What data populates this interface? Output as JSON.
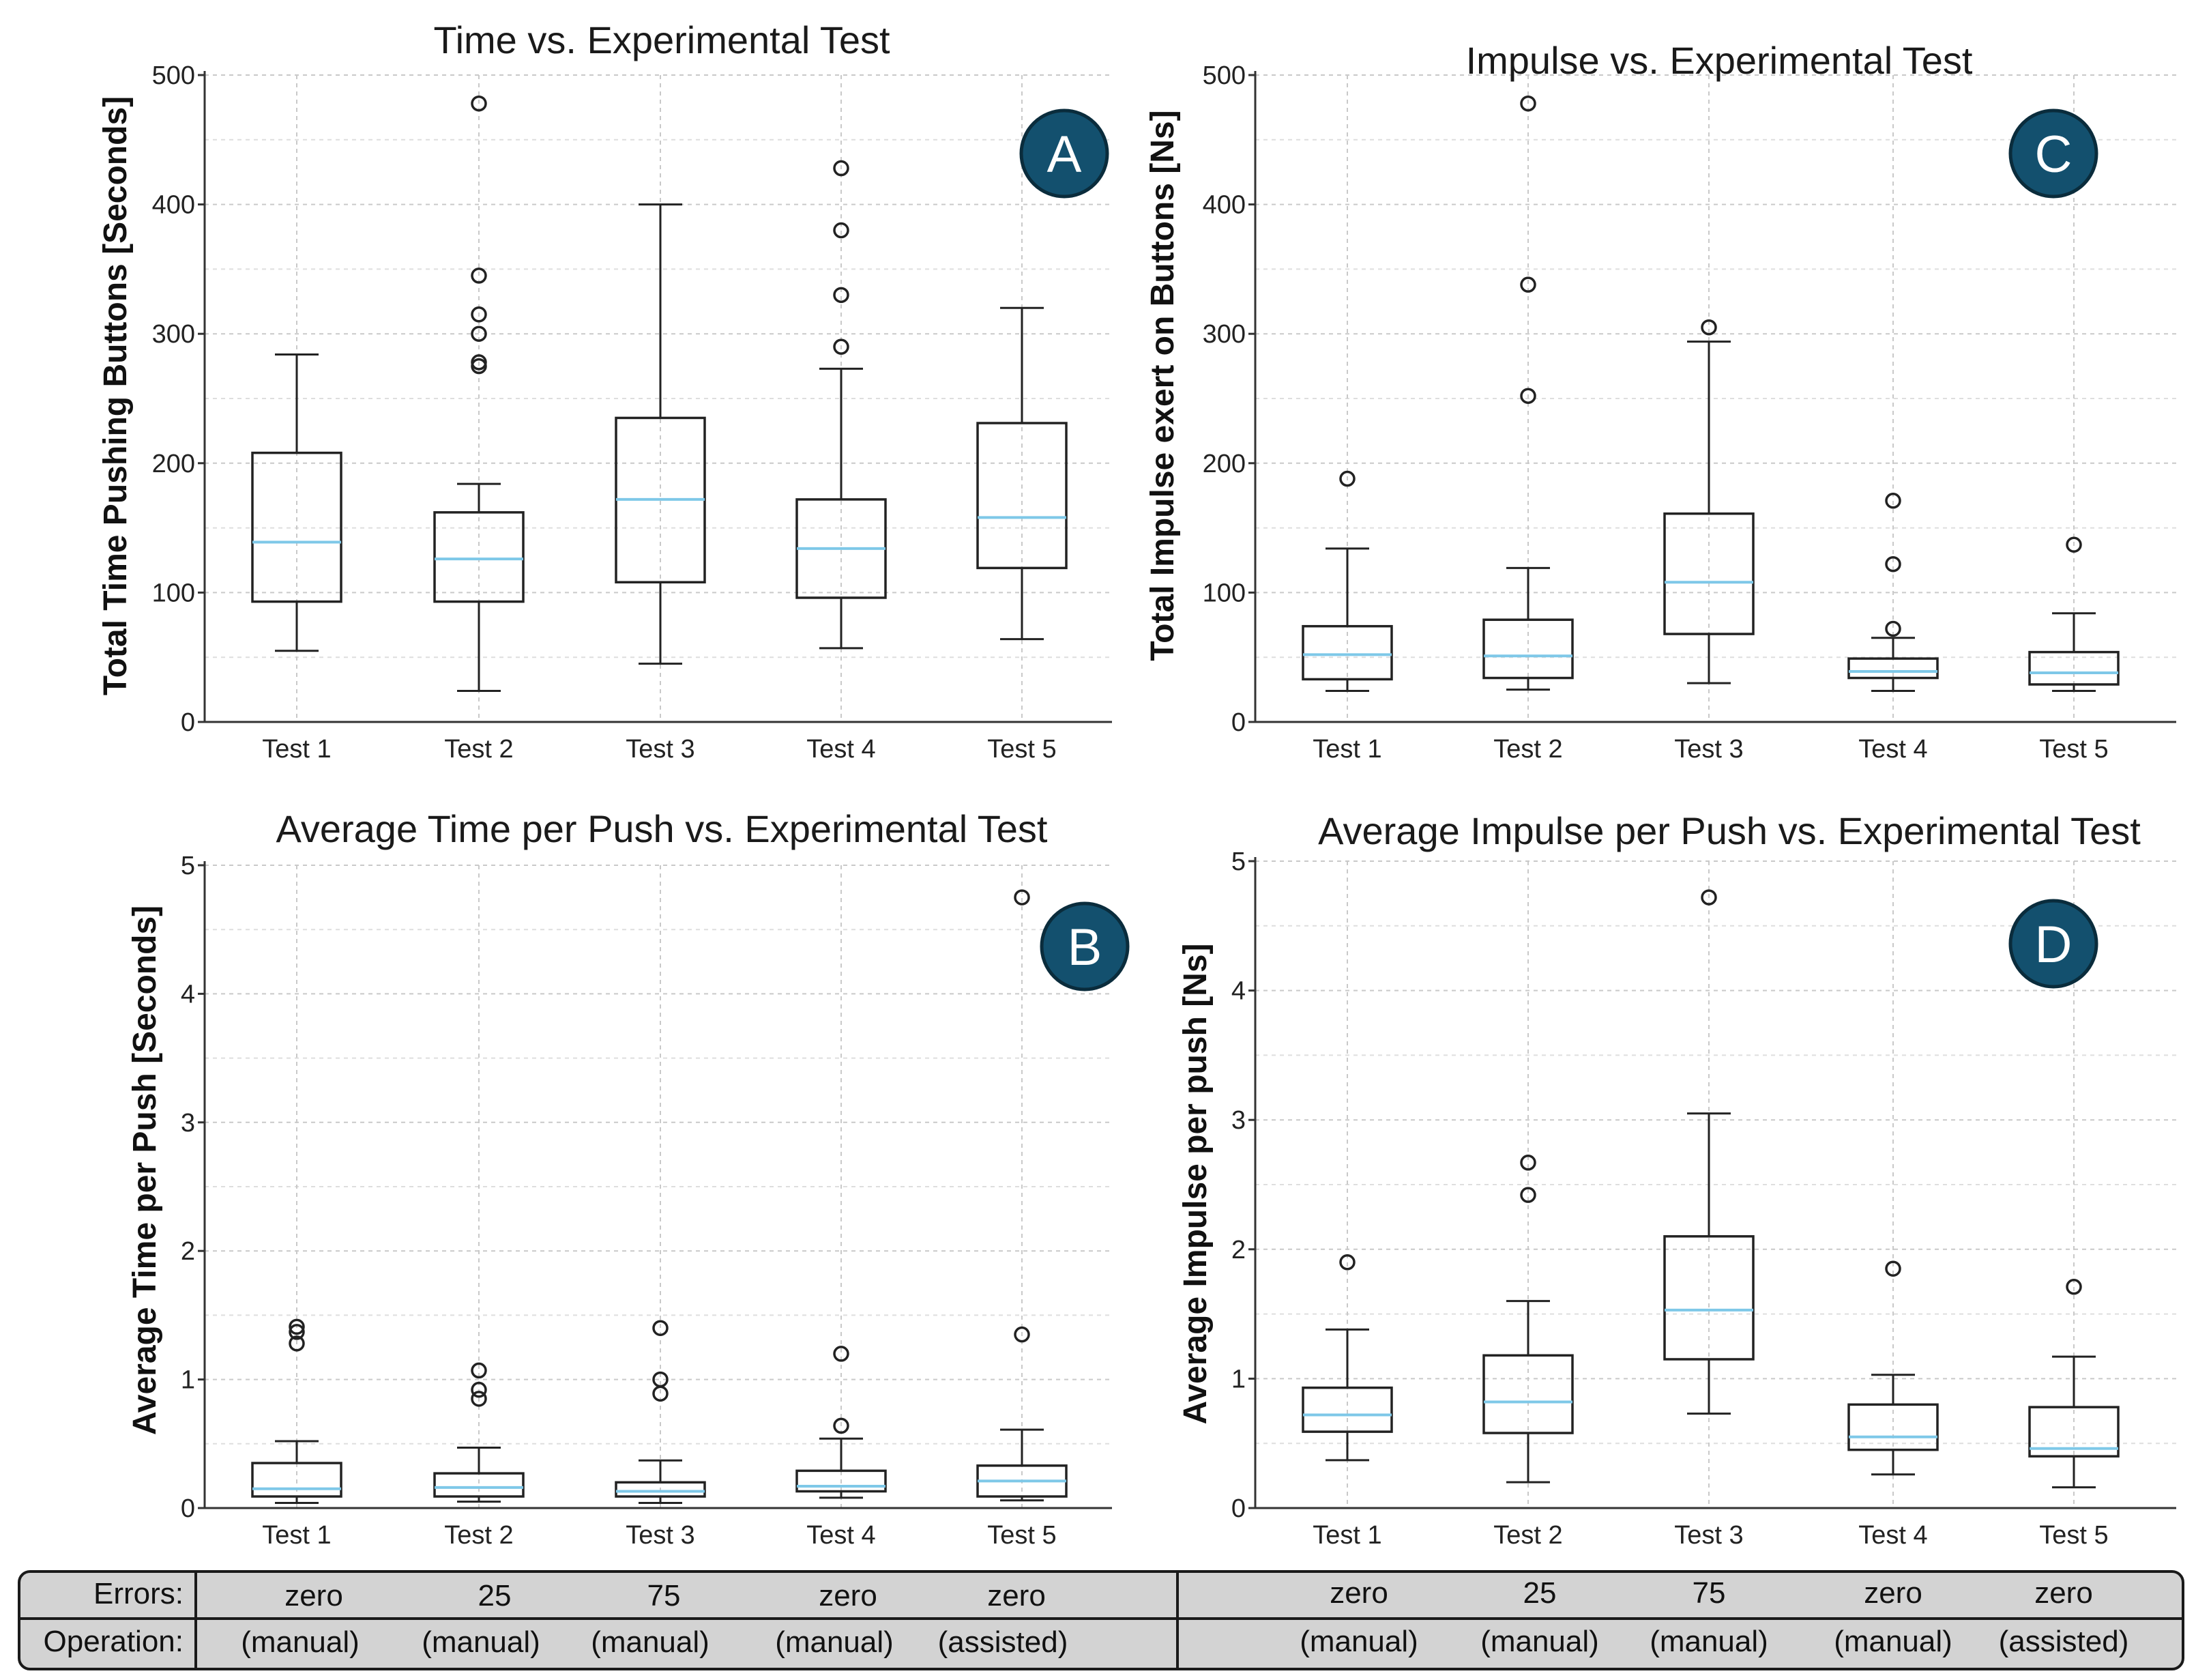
{
  "chart_data": [
    {
      "id": "A",
      "type": "box",
      "title": "Time vs. Experimental Test",
      "xlabel": "",
      "ylabel": "Total Time Pushing Buttons  [Seconds]",
      "ylim": [
        0,
        500
      ],
      "yticks": [
        0,
        100,
        200,
        300,
        400,
        500
      ],
      "categories": [
        "Test 1",
        "Test 2",
        "Test 3",
        "Test 4",
        "Test 5"
      ],
      "badge": "A",
      "boxes": [
        {
          "min": 55,
          "q1": 93,
          "median": 139,
          "q3": 208,
          "max": 284,
          "outliers": []
        },
        {
          "min": 24,
          "q1": 93,
          "median": 126,
          "q3": 162,
          "max": 184,
          "outliers": [
            275,
            278,
            300,
            315,
            345,
            478
          ]
        },
        {
          "min": 45,
          "q1": 108,
          "median": 172,
          "q3": 235,
          "max": 400,
          "outliers": []
        },
        {
          "min": 57,
          "q1": 96,
          "median": 134,
          "q3": 172,
          "max": 273,
          "outliers": [
            290,
            330,
            380,
            428
          ]
        },
        {
          "min": 64,
          "q1": 119,
          "median": 158,
          "q3": 231,
          "max": 320,
          "outliers": []
        }
      ]
    },
    {
      "id": "C",
      "type": "box",
      "title": "Impulse vs. Experimental Test",
      "xlabel": "",
      "ylabel": "Total Impulse exert on Buttons  [Ns]",
      "ylim": [
        0,
        500
      ],
      "yticks": [
        0,
        100,
        200,
        300,
        400,
        500
      ],
      "categories": [
        "Test 1",
        "Test 2",
        "Test 3",
        "Test 4",
        "Test 5"
      ],
      "badge": "C",
      "boxes": [
        {
          "min": 24,
          "q1": 33,
          "median": 52,
          "q3": 74,
          "max": 134,
          "outliers": [
            188
          ]
        },
        {
          "min": 25,
          "q1": 34,
          "median": 51,
          "q3": 79,
          "max": 119,
          "outliers": [
            252,
            338,
            478
          ]
        },
        {
          "min": 30,
          "q1": 68,
          "median": 108,
          "q3": 161,
          "max": 294,
          "outliers": [
            305
          ]
        },
        {
          "min": 24,
          "q1": 34,
          "median": 39,
          "q3": 49,
          "max": 65,
          "outliers": [
            72,
            122,
            171
          ]
        },
        {
          "min": 24,
          "q1": 29,
          "median": 38,
          "q3": 54,
          "max": 84,
          "outliers": [
            137
          ]
        }
      ]
    },
    {
      "id": "B",
      "type": "box",
      "title": "Average Time per Push vs. Experimental Test",
      "xlabel": "",
      "ylabel": "Average Time per Push [Seconds]",
      "ylim": [
        0,
        5
      ],
      "yticks": [
        0,
        1,
        2,
        3,
        4,
        5
      ],
      "categories": [
        "Test 1",
        "Test 2",
        "Test 3",
        "Test 4",
        "Test 5"
      ],
      "badge": "B",
      "boxes": [
        {
          "min": 0.04,
          "q1": 0.09,
          "median": 0.15,
          "q3": 0.35,
          "max": 0.52,
          "outliers": [
            1.28,
            1.37,
            1.41
          ]
        },
        {
          "min": 0.05,
          "q1": 0.09,
          "median": 0.16,
          "q3": 0.27,
          "max": 0.47,
          "outliers": [
            0.85,
            0.92,
            1.07
          ]
        },
        {
          "min": 0.04,
          "q1": 0.09,
          "median": 0.13,
          "q3": 0.2,
          "max": 0.37,
          "outliers": [
            0.89,
            1.0,
            1.4
          ]
        },
        {
          "min": 0.08,
          "q1": 0.13,
          "median": 0.17,
          "q3": 0.29,
          "max": 0.54,
          "outliers": [
            0.64,
            1.2
          ]
        },
        {
          "min": 0.06,
          "q1": 0.09,
          "median": 0.21,
          "q3": 0.33,
          "max": 0.61,
          "outliers": [
            1.35,
            4.75
          ]
        }
      ]
    },
    {
      "id": "D",
      "type": "box",
      "title": "Average Impulse per Push vs. Experimental Test",
      "xlabel": "",
      "ylabel": "Average Impulse per push [Ns]",
      "ylim": [
        0,
        5
      ],
      "yticks": [
        0,
        1,
        2,
        3,
        4,
        5
      ],
      "categories": [
        "Test 1",
        "Test 2",
        "Test 3",
        "Test 4",
        "Test 5"
      ],
      "badge": "D",
      "boxes": [
        {
          "min": 0.37,
          "q1": 0.59,
          "median": 0.72,
          "q3": 0.93,
          "max": 1.38,
          "outliers": [
            1.9
          ]
        },
        {
          "min": 0.2,
          "q1": 0.58,
          "median": 0.82,
          "q3": 1.18,
          "max": 1.6,
          "outliers": [
            2.42,
            2.67
          ]
        },
        {
          "min": 0.73,
          "q1": 1.15,
          "median": 1.53,
          "q3": 2.1,
          "max": 3.05,
          "outliers": [
            4.72
          ]
        },
        {
          "min": 0.26,
          "q1": 0.45,
          "median": 0.55,
          "q3": 0.8,
          "max": 1.03,
          "outliers": [
            1.85
          ]
        },
        {
          "min": 0.16,
          "q1": 0.4,
          "median": 0.46,
          "q3": 0.78,
          "max": 1.17,
          "outliers": [
            1.71
          ]
        }
      ]
    }
  ],
  "table": {
    "errors_label": "Errors:",
    "operation_label": "Operation:",
    "left": {
      "errors": [
        "zero",
        "25",
        "75",
        "zero",
        "zero"
      ],
      "operation": [
        "(manual)",
        "(manual)",
        "(manual)",
        "(manual)",
        "(assisted)"
      ]
    },
    "right": {
      "errors": [
        "zero",
        "25",
        "75",
        "zero",
        "zero"
      ],
      "operation": [
        "(manual)",
        "(manual)",
        "(manual)",
        "(manual)",
        "(assisted)"
      ]
    }
  }
}
